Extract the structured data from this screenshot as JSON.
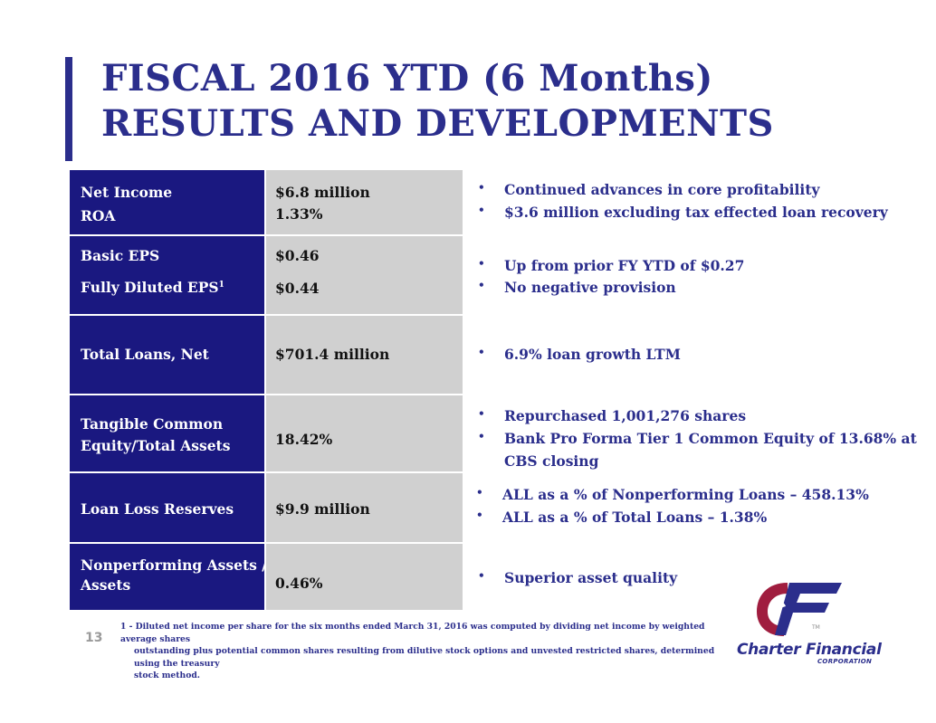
{
  "title": {
    "line1": "FISCAL 2016 YTD (6 Months)",
    "line2": "RESULTS AND DEVELOPMENTS"
  },
  "rows": [
    {
      "labels": [
        "Net Income",
        "ROA"
      ],
      "values": [
        "$6.8 million",
        "1.33%"
      ]
    },
    {
      "labels": [
        "Basic EPS",
        "Fully Diluted EPS"
      ],
      "label_sup": "1",
      "values": [
        "$0.46",
        "$0.44"
      ]
    },
    {
      "labels": [
        "Total Loans, Net"
      ],
      "values": [
        "$701.4 million"
      ]
    },
    {
      "labels": [
        "Tangible Common",
        "Equity/Total Assets"
      ],
      "values": [
        "18.42%"
      ]
    },
    {
      "labels": [
        "Loan Loss Reserves"
      ],
      "values": [
        "$9.9 million"
      ]
    },
    {
      "labels": [
        "Nonperforming Assets /",
        "Assets"
      ],
      "values": [
        "0.46%"
      ]
    }
  ],
  "bullet_char": "•",
  "bullets": [
    "Continued advances in core profitability",
    "$3.6 million excluding tax effected loan recovery",
    "Up from  prior FY YTD of $0.27",
    "No negative provision",
    "6.9% loan growth LTM",
    "Repurchased 1,001,276 shares",
    "Bank Pro Forma Tier 1 Common Equity of 13.68% at",
    "CBS closing",
    "ALL as a % of Nonperforming Loans – 458.13%",
    "ALL as a % of Total Loans – 1.38%",
    "Superior asset quality"
  ],
  "page_number": "13",
  "footnote": {
    "line1": "1 - Diluted net income per share for the six months ended March 31, 2016  was computed by dividing net income by weighted average shares",
    "line2": "outstanding plus potential common shares resulting from dilutive stock options and unvested restricted shares, determined using the treasury",
    "line3": "stock method."
  },
  "logo": {
    "name": "Charter Financial",
    "subtitle": "CORPORATION",
    "trademark": "TM"
  },
  "colors": {
    "title": "#2b2e8c",
    "label_bg": "#1a1880",
    "value_bg": "#d0d0d0",
    "logo_red": "#a01d3f",
    "logo_navy": "#2b2e8c"
  }
}
